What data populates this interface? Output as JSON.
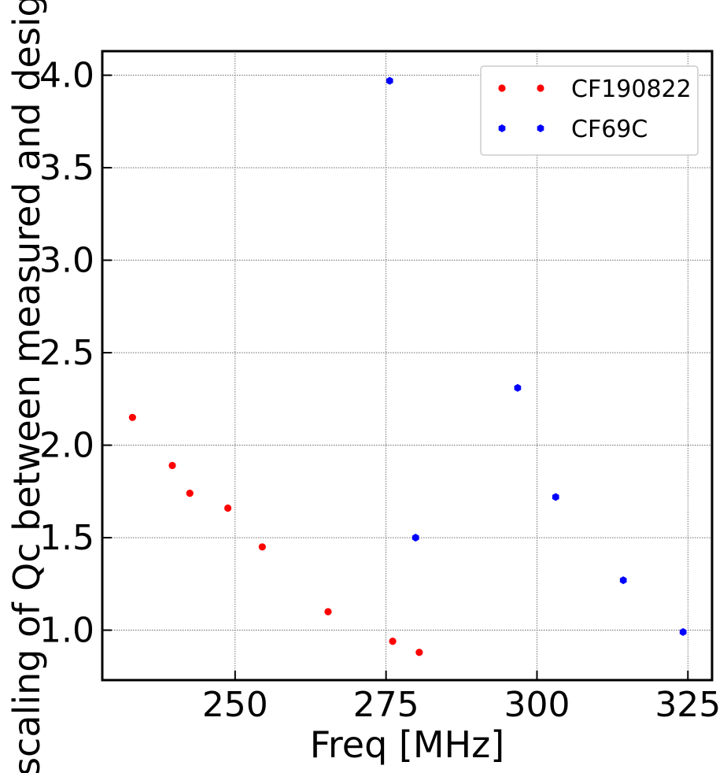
{
  "chart_data": {
    "type": "scatter",
    "xlabel": "Freq [MHz]",
    "ylabel": "scaling of Qc between measured and design",
    "xlim": [
      228,
      329
    ],
    "ylim": [
      0.73,
      4.13
    ],
    "grid": true,
    "legend_position": "top-right",
    "x_ticks": [
      250,
      275,
      300,
      325
    ],
    "y_ticks": [
      1.0,
      1.5,
      2.0,
      2.5,
      3.0,
      3.5,
      4.0
    ],
    "x_tick_labels": [
      "250",
      "275",
      "300",
      "325"
    ],
    "y_tick_labels": [
      "1.0",
      "1.5",
      "2.0",
      "2.5",
      "3.0",
      "3.5",
      "4.0"
    ],
    "series": [
      {
        "name": "CF190822",
        "color": "#ff0000",
        "marker": "circle",
        "points": [
          [
            233.0,
            2.15
          ],
          [
            239.6,
            1.89
          ],
          [
            242.5,
            1.74
          ],
          [
            248.8,
            1.66
          ],
          [
            254.5,
            1.45
          ],
          [
            265.4,
            1.1
          ],
          [
            276.1,
            0.94
          ],
          [
            280.5,
            0.88
          ]
        ]
      },
      {
        "name": "CF69C",
        "color": "#0000ff",
        "marker": "hexagon",
        "points": [
          [
            275.6,
            3.97
          ],
          [
            279.9,
            1.5
          ],
          [
            296.8,
            2.31
          ],
          [
            303.1,
            1.72
          ],
          [
            314.3,
            1.27
          ],
          [
            324.2,
            0.99
          ]
        ]
      }
    ]
  }
}
